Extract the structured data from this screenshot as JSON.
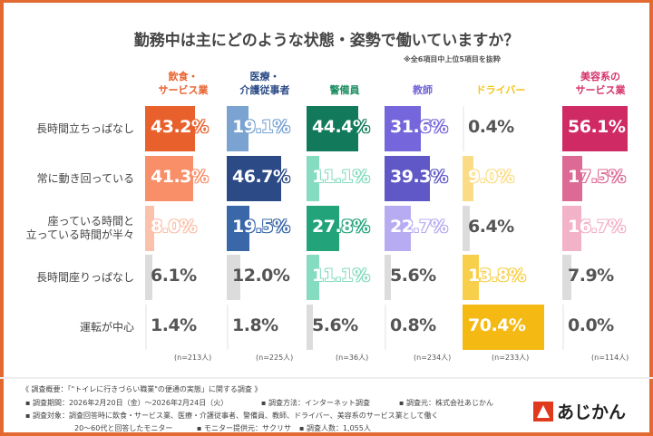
{
  "title": "勤務中は主にどのような状態・姿勢で働いていますか？",
  "note": "※全6項目中上位5項目を抜粋",
  "chart_data": {
    "type": "bar",
    "title": "勤務中は主にどのような状態・姿勢で働いていますか？",
    "categories": [
      "長時間立ちっぱなし",
      "常に動き回っている",
      "座っている時間と\n立っている時間が半々",
      "長時間座りっぱなし",
      "運転が中心"
    ],
    "series": [
      {
        "name": "飲食・\nサービス業",
        "n": "(n=213人)",
        "color": "#e8602c",
        "values": [
          43.2,
          41.3,
          8.0,
          6.1,
          1.4
        ],
        "bar_colors": [
          "#e8602c",
          "#f98f68",
          "#fbc1aa",
          "#dcdcdc",
          "#f0f0f0"
        ]
      },
      {
        "name": "医療・\n介護従事者",
        "n": "(n=225人)",
        "color": "#2b4a86",
        "values": [
          19.1,
          46.7,
          19.5,
          12.0,
          1.8
        ],
        "bar_colors": [
          "#7aa3d2",
          "#2b4a86",
          "#3a67a8",
          "#dcdcdc",
          "#f0f0f0"
        ]
      },
      {
        "name": "警備員",
        "n": "(n=36人)",
        "color": "#1f8f63",
        "values": [
          44.4,
          11.1,
          27.8,
          11.1,
          5.6
        ],
        "bar_colors": [
          "#127a5a",
          "#86dcc0",
          "#22a37a",
          "#86dcc0",
          "#dcdcdc"
        ]
      },
      {
        "name": "教師",
        "n": "(n=234人)",
        "color": "#6f63d6",
        "values": [
          31.6,
          39.3,
          22.7,
          5.6,
          0.8
        ],
        "bar_colors": [
          "#7666dc",
          "#5f58c6",
          "#b7acf2",
          "#dcdcdc",
          "#f0f0f0"
        ]
      },
      {
        "name": "ドライバー",
        "n": "(n=233人)",
        "color": "#f5c518",
        "values": [
          0.4,
          9.0,
          6.4,
          13.8,
          70.4
        ],
        "bar_colors": [
          "#f0f0f0",
          "#fbdc86",
          "#dcdcdc",
          "#f8cf4a",
          "#f5b914"
        ]
      },
      {
        "name": "美容系の\nサービス業",
        "n": "(n=114人)",
        "color": "#d6336c",
        "values": [
          56.1,
          17.5,
          16.7,
          7.9,
          0.0
        ],
        "bar_colors": [
          "#d02a64",
          "#dd6a94",
          "#f2b3c8",
          "#dcdcdc",
          "#f0f0f0"
        ]
      }
    ],
    "unit": "%"
  },
  "footer": {
    "heading": "《 調査概要：「\"トイレに行きづらい職業\"の便通の実態」に関する調査 》",
    "period": "▪ 調査期間：2026年2月20日（金）〜2026年2月24日（火）",
    "method": "▪ 調査方法：インターネット調査",
    "org": "▪ 調査元：株式会社あじかん",
    "target1": "▪ 調査対象：調査回答時に飲食・サービス業、医療・介護従事者、警備員、教師、ドライバー、美容系のサービス業として働く",
    "target2": "20〜60代と回答したモニター",
    "provider": "▪ モニター提供元：サクリサ",
    "count": "▪ 調査人数：1,055人"
  },
  "logo": "あじかん"
}
